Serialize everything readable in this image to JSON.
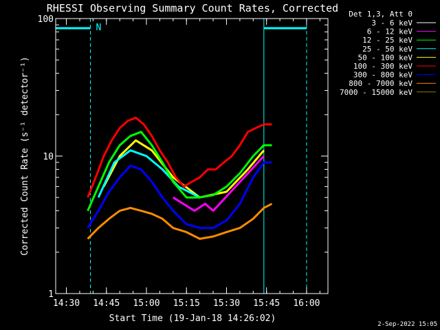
{
  "chart_data": {
    "type": "line",
    "title": "RHESSI Observing Summary Count Rates, Corrected",
    "xlabel": "Start Time (19-Jan-18 14:26:02)",
    "ylabel": "Corrected Count Rate (s⁻¹ detector⁻¹)",
    "y_scale": "log",
    "ylim": [
      1,
      100
    ],
    "y_ticks": [
      {
        "value": 1,
        "label": "1"
      },
      {
        "value": 10,
        "label": "10"
      },
      {
        "value": 100,
        "label": "100"
      }
    ],
    "xlim": [
      "14:26",
      "16:08"
    ],
    "x_ticks": [
      "14:30",
      "14:45",
      "15:00",
      "15:15",
      "15:30",
      "15:45",
      "16:00"
    ],
    "legend_title": "Det 1,3, Att 0",
    "legend_placement": "right",
    "series": [
      {
        "name": "3 - 6 keV",
        "color": "#ffffff",
        "x": [],
        "y": []
      },
      {
        "name": "6 - 12 keV",
        "color": "#ff00ff",
        "x": [
          "15:10",
          "15:18",
          "15:22",
          "15:25",
          "15:44"
        ],
        "y": [
          5,
          4,
          4.5,
          4,
          10
        ]
      },
      {
        "name": "12 - 25 keV",
        "color": "#00ff00",
        "x": [
          "14:38",
          "14:42",
          "14:46",
          "14:50",
          "14:54",
          "14:58",
          "15:02",
          "15:06",
          "15:10",
          "15:15",
          "15:20",
          "15:25",
          "15:30",
          "15:35",
          "15:40",
          "15:44",
          "15:47"
        ],
        "y": [
          4,
          6,
          9,
          12,
          14,
          15,
          12,
          9,
          6.5,
          5,
          5,
          5.2,
          6,
          7.5,
          10,
          12,
          12
        ]
      },
      {
        "name": "25 - 50 keV",
        "color": "#00ffff",
        "x": [
          "14:42",
          "14:48",
          "14:54",
          "15:00",
          "15:06",
          "15:12",
          "15:20"
        ],
        "y": [
          5,
          9,
          11,
          10,
          8,
          6,
          5
        ]
      },
      {
        "name": "50 - 100 keV",
        "color": "#ffff00",
        "x": [
          "14:44",
          "14:50",
          "14:56",
          "15:02",
          "15:10",
          "15:20",
          "15:30",
          "15:38",
          "15:44"
        ],
        "y": [
          6,
          10,
          13,
          11,
          7,
          5,
          5.5,
          8,
          11
        ]
      },
      {
        "name": "100 - 300 keV",
        "color": "#ff0000",
        "x": [
          "14:38",
          "14:41",
          "14:44",
          "14:47",
          "14:50",
          "14:53",
          "14:56",
          "14:59",
          "15:02",
          "15:05",
          "15:08",
          "15:11",
          "15:14",
          "15:17",
          "15:20",
          "15:23",
          "15:26",
          "15:29",
          "15:32",
          "15:35",
          "15:38",
          "15:41",
          "15:44",
          "15:47"
        ],
        "y": [
          5,
          7,
          10,
          13,
          16,
          18,
          19,
          17,
          14,
          11,
          9,
          7,
          6,
          6.5,
          7,
          8,
          8,
          9,
          10,
          12,
          15,
          16,
          17,
          17
        ]
      },
      {
        "name": "300 - 800 keV",
        "color": "#0000ff",
        "x": [
          "14:38",
          "14:42",
          "14:46",
          "14:50",
          "14:54",
          "14:58",
          "15:02",
          "15:06",
          "15:10",
          "15:15",
          "15:20",
          "15:25",
          "15:30",
          "15:35",
          "15:40",
          "15:44",
          "15:47"
        ],
        "y": [
          3,
          4,
          5.5,
          7,
          8.5,
          8,
          6.5,
          5,
          4,
          3.2,
          3,
          3,
          3.4,
          4.5,
          7,
          9,
          9
        ]
      },
      {
        "name": "800 - 7000 keV",
        "color": "#ff8c00",
        "x": [
          "14:38",
          "14:42",
          "14:46",
          "14:50",
          "14:54",
          "14:58",
          "15:02",
          "15:06",
          "15:10",
          "15:15",
          "15:20",
          "15:25",
          "15:30",
          "15:35",
          "15:40",
          "15:44",
          "15:47"
        ],
        "y": [
          2.5,
          3,
          3.5,
          4,
          4.2,
          4,
          3.8,
          3.5,
          3,
          2.8,
          2.5,
          2.6,
          2.8,
          3,
          3.5,
          4.2,
          4.5
        ]
      },
      {
        "name": "7000 - 15000 keV",
        "color": "#808000",
        "x": [],
        "y": []
      }
    ],
    "flag_color": "#00ffff",
    "flag_label": "N",
    "timestamp": "2-Sep-2022 15:05"
  }
}
